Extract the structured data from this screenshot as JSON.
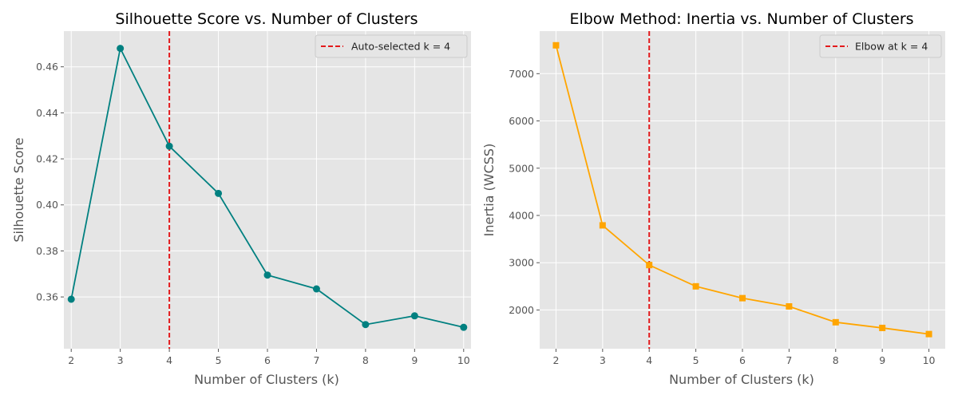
{
  "chart_data": [
    {
      "type": "line",
      "title": "Silhouette Score vs. Number of Clusters",
      "xlabel": "Number of Clusters (k)",
      "ylabel": "Silhouette Score",
      "x": [
        2,
        3,
        4,
        5,
        6,
        7,
        8,
        9,
        10
      ],
      "series": [
        {
          "values": [
            0.359,
            0.468,
            0.4255,
            0.405,
            0.3695,
            0.3635,
            0.348,
            0.3518,
            0.3468
          ],
          "color": "#008080",
          "marker": "circle"
        }
      ],
      "xlim": [
        1.85,
        10.15
      ],
      "ylim": [
        0.3375,
        0.4755
      ],
      "xticks": [
        2,
        3,
        4,
        5,
        6,
        7,
        8,
        9,
        10
      ],
      "yticks": [
        0.36,
        0.38,
        0.4,
        0.42,
        0.44,
        0.46
      ],
      "ytick_labels": [
        "0.36",
        "0.38",
        "0.40",
        "0.42",
        "0.44",
        "0.46"
      ],
      "vline": {
        "x": 4,
        "label": "Auto-selected k = 4",
        "color": "#e31a1c",
        "style": "dashed"
      },
      "legend": {
        "position": "top-right"
      },
      "grid": true
    },
    {
      "type": "line",
      "title": "Elbow Method: Inertia vs. Number of Clusters",
      "xlabel": "Number of Clusters (k)",
      "ylabel": "Inertia (WCSS)",
      "x": [
        2,
        3,
        4,
        5,
        6,
        7,
        8,
        9,
        10
      ],
      "series": [
        {
          "values": [
            7600,
            3790,
            2950,
            2500,
            2250,
            2075,
            1740,
            1620,
            1490
          ],
          "color": "#ffa500",
          "marker": "square"
        }
      ],
      "xlim": [
        1.65,
        10.35
      ],
      "ylim": [
        1180,
        7900
      ],
      "xticks": [
        2,
        3,
        4,
        5,
        6,
        7,
        8,
        9,
        10
      ],
      "yticks": [
        2000,
        3000,
        4000,
        5000,
        6000,
        7000
      ],
      "ytick_labels": [
        "2000",
        "3000",
        "4000",
        "5000",
        "6000",
        "7000"
      ],
      "vline": {
        "x": 4,
        "label": "Elbow at k = 4",
        "color": "#e31a1c",
        "style": "dashed"
      },
      "legend": {
        "position": "top-right"
      },
      "grid": true
    }
  ]
}
